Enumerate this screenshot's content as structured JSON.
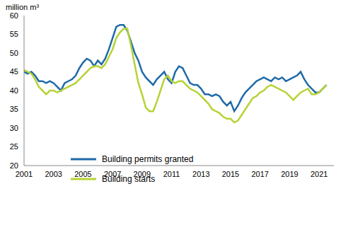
{
  "chart_data": {
    "type": "line",
    "y_label": "million m³",
    "x": [
      2001.0,
      2001.25,
      2001.5,
      2001.75,
      2002.0,
      2002.25,
      2002.5,
      2002.75,
      2003.0,
      2003.25,
      2003.5,
      2003.75,
      2004.0,
      2004.25,
      2004.5,
      2004.75,
      2005.0,
      2005.25,
      2005.5,
      2005.75,
      2006.0,
      2006.25,
      2006.5,
      2006.75,
      2007.0,
      2007.25,
      2007.5,
      2007.75,
      2008.0,
      2008.25,
      2008.5,
      2008.75,
      2009.0,
      2009.25,
      2009.5,
      2009.75,
      2010.0,
      2010.25,
      2010.5,
      2010.75,
      2011.0,
      2011.25,
      2011.5,
      2011.75,
      2012.0,
      2012.25,
      2012.5,
      2012.75,
      2013.0,
      2013.25,
      2013.5,
      2013.75,
      2014.0,
      2014.25,
      2014.5,
      2014.75,
      2015.0,
      2015.25,
      2015.5,
      2015.75,
      2016.0,
      2016.25,
      2016.5,
      2016.75,
      2017.0,
      2017.25,
      2017.5,
      2017.75,
      2018.0,
      2018.25,
      2018.5,
      2018.75,
      2019.0,
      2019.25,
      2019.5,
      2019.75,
      2020.0,
      2020.25,
      2020.5,
      2020.75,
      2021.0,
      2021.25,
      2021.5
    ],
    "series": [
      {
        "name": "Building permits granted",
        "color": "#1f6aa8",
        "values": [
          45,
          44.5,
          45,
          44,
          42.5,
          42.5,
          42,
          42.5,
          42,
          41,
          40,
          42,
          42.5,
          43,
          44,
          46,
          47.5,
          48.5,
          48,
          46.5,
          48,
          47,
          48.5,
          51,
          54,
          57,
          57.5,
          57.5,
          56,
          53,
          50,
          48,
          45,
          43.5,
          42.5,
          41.5,
          43,
          44,
          45,
          43,
          42,
          45,
          46.5,
          46,
          44,
          42,
          41.5,
          41.5,
          40.5,
          39,
          39,
          38.5,
          39,
          38.5,
          37,
          36,
          37,
          34.5,
          36,
          38,
          39.5,
          40.5,
          41.5,
          42.5,
          43,
          43.5,
          43,
          42.5,
          43.5,
          43,
          43.5,
          42.5,
          43,
          43.5,
          44,
          45,
          43,
          41.5,
          40.5,
          39.5,
          39.5,
          40.5,
          41.5
        ]
      },
      {
        "name": "Building starts",
        "color": "#b5d334",
        "values": [
          45.5,
          45,
          44.5,
          43,
          41,
          40,
          39,
          40,
          40,
          39.5,
          40,
          40.5,
          41,
          41.5,
          42,
          43,
          44,
          45,
          46,
          46.5,
          46.5,
          46,
          47,
          49,
          51,
          54,
          55.5,
          56.5,
          56.5,
          52,
          47,
          42,
          39,
          35.5,
          34.5,
          34.5,
          37,
          40,
          43,
          44,
          42.5,
          42,
          42.5,
          42.5,
          41.5,
          40.5,
          40,
          39.5,
          38.5,
          37.5,
          36.5,
          35,
          34.5,
          34,
          33,
          32.5,
          32.5,
          31.5,
          32,
          33.5,
          35,
          36.5,
          38,
          38.5,
          39.5,
          40,
          41,
          41.5,
          41,
          40.5,
          40,
          39.5,
          38.5,
          37.5,
          38.5,
          39.5,
          40,
          40.5,
          39,
          39,
          39.5,
          40.5,
          41.5
        ]
      }
    ],
    "xlim": [
      2001,
      2022
    ],
    "xticks": [
      2001,
      2003,
      2005,
      2007,
      2009,
      2011,
      2013,
      2015,
      2017,
      2019,
      2021
    ],
    "ylim": [
      20,
      60
    ],
    "yticks": [
      20,
      25,
      30,
      35,
      40,
      45,
      50,
      55,
      60
    ],
    "grid": false,
    "legend": "lower left"
  }
}
